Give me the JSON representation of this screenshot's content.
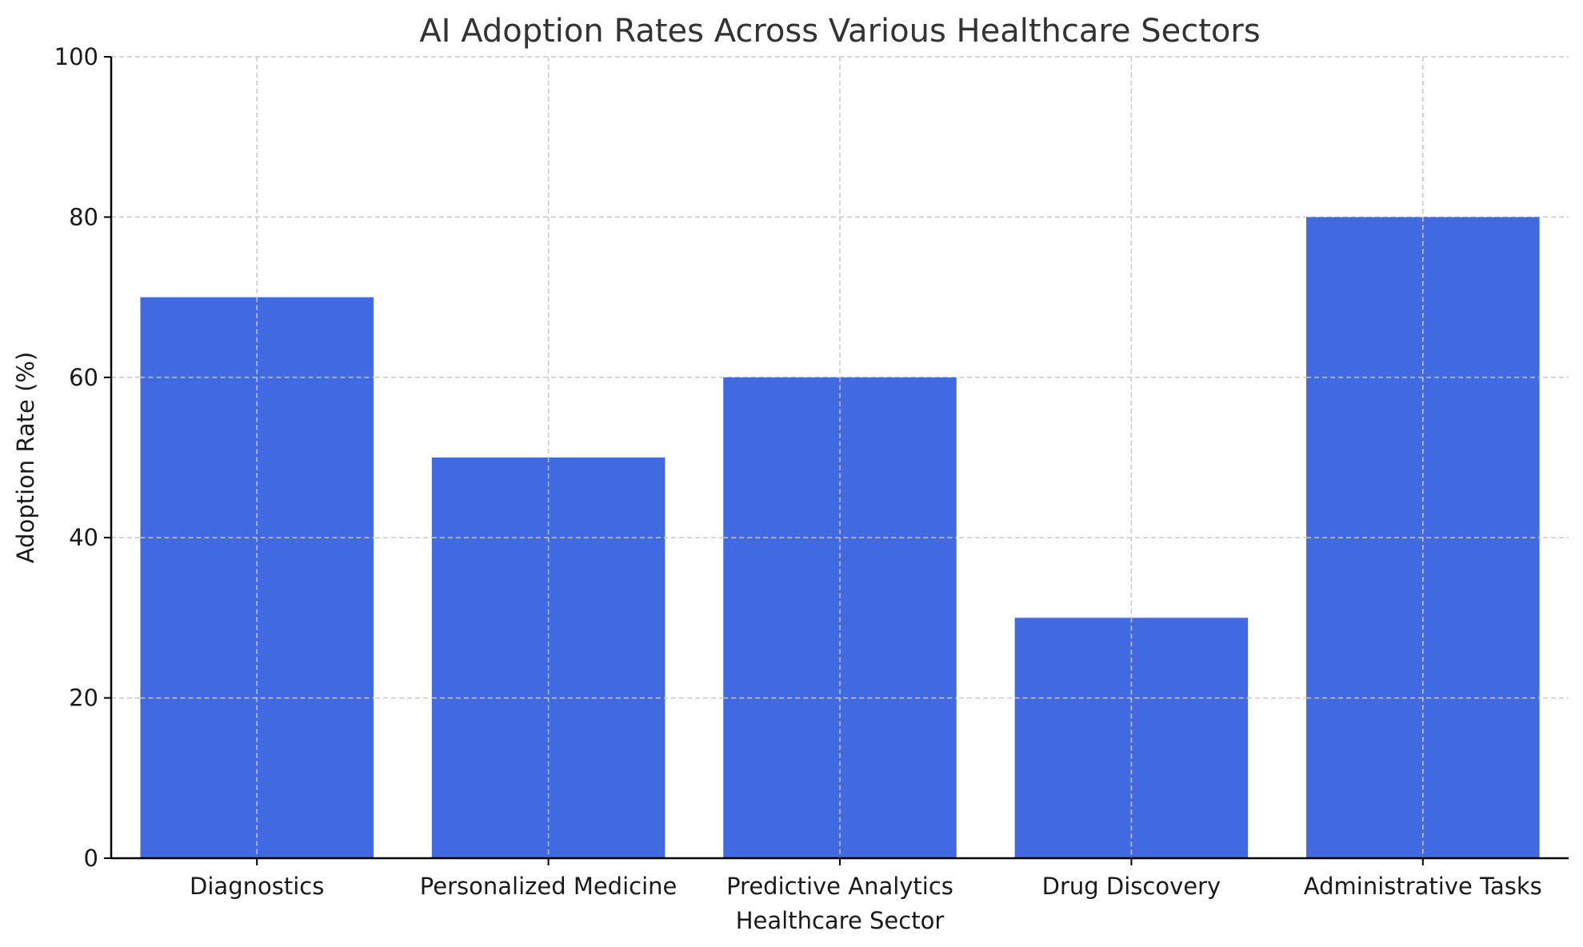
{
  "chart_data": {
    "type": "bar",
    "title": "AI Adoption Rates Across Various Healthcare Sectors",
    "xlabel": "Healthcare Sector",
    "ylabel": "Adoption Rate (%)",
    "categories": [
      "Diagnostics",
      "Personalized Medicine",
      "Predictive Analytics",
      "Drug Discovery",
      "Administrative Tasks"
    ],
    "values": [
      70,
      50,
      60,
      30,
      80
    ],
    "ylim": [
      0,
      100
    ],
    "yticks": [
      0,
      20,
      40,
      60,
      80,
      100
    ],
    "grid": true,
    "bar_color": "#4169e1"
  }
}
